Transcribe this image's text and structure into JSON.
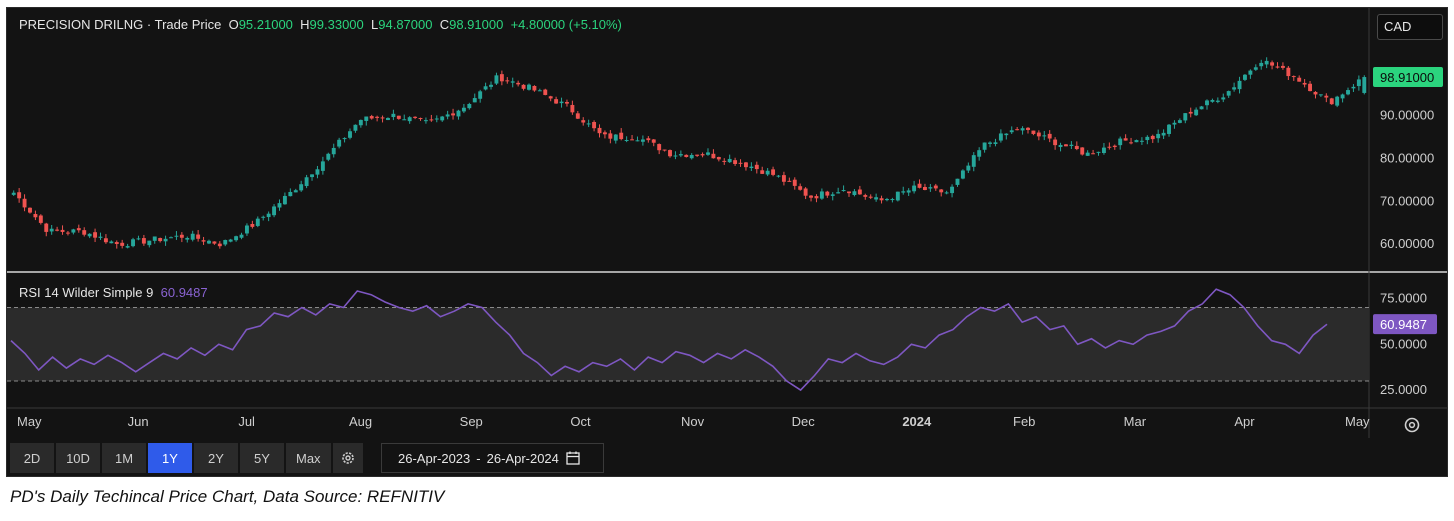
{
  "header": {
    "instrument": "PRECISION DRILNG",
    "separator": "·",
    "series_label": "Trade Price",
    "open_key": "O",
    "open": "95.21000",
    "high_key": "H",
    "high": "99.33000",
    "low_key": "L",
    "low": "94.87000",
    "close_key": "C",
    "close": "98.91000",
    "change": "+4.80000 (+5.10%)"
  },
  "currency": "CAD",
  "rsi_header": {
    "label": "RSI 14 Wilder Simple 9",
    "value": "60.9487"
  },
  "last_price_badge": "98.91000",
  "rsi_badge": "60.9487",
  "toolbar": {
    "buttons": [
      "2D",
      "10D",
      "1M",
      "1Y",
      "2Y",
      "5Y",
      "Max"
    ],
    "active": "1Y",
    "date_from": "26-Apr-2023",
    "date_sep": "-",
    "date_to": "26-Apr-2024"
  },
  "caption": "PD's Daily Techincal Price Chart, Data Source: REFNITIV",
  "colors": {
    "up": "#26a69a",
    "down": "#ef5350",
    "rsi": "#7e57c2",
    "badge_price": "#2bd47e",
    "badge_rsi": "#7e57c2",
    "active_button": "#2f5bea"
  },
  "chart_data": [
    {
      "type": "candlestick",
      "title": "PRECISION DRILNG · Trade Price",
      "price_axis": {
        "ticks": [
          "60.00000",
          "70.00000",
          "80.00000",
          "90.00000"
        ],
        "range": [
          54,
          108
        ]
      },
      "x_axis": {
        "labels": [
          "May",
          "Jun",
          "Jul",
          "Aug",
          "Sep",
          "Oct",
          "Nov",
          "Dec",
          "2024",
          "Feb",
          "Mar",
          "Apr",
          "May"
        ]
      },
      "series": [
        {
          "name": "Trade Price",
          "dates": [
            "2023-04",
            "2023-05-01",
            "2023-05-15",
            "2023-06-01",
            "2023-06-10",
            "2023-06-20",
            "2023-07-01",
            "2023-07-15",
            "2023-07-25",
            "2023-08-01",
            "2023-08-10",
            "2023-08-20",
            "2023-09-01",
            "2023-09-08",
            "2023-09-15",
            "2023-09-22",
            "2023-10-01",
            "2023-10-10",
            "2023-10-20",
            "2023-11-01",
            "2023-11-15",
            "2023-11-25",
            "2023-12-01",
            "2023-12-10",
            "2023-12-20",
            "2024-01-01",
            "2024-01-10",
            "2024-01-20",
            "2024-02-01",
            "2024-02-10",
            "2024-02-20",
            "2024-03-01",
            "2024-03-10",
            "2024-03-20",
            "2024-04-01",
            "2024-04-05",
            "2024-04-10",
            "2024-04-15",
            "2024-04-20",
            "2024-04-26"
          ],
          "close": [
            72,
            63,
            63,
            60,
            61,
            62,
            60,
            65,
            72,
            80,
            89,
            90,
            88,
            92,
            99,
            96,
            92,
            85,
            85,
            81,
            81,
            79,
            76,
            71,
            73,
            70,
            73,
            72,
            83,
            87,
            84,
            81,
            84,
            85,
            91,
            95,
            103,
            99,
            93,
            98.91
          ]
        }
      ],
      "last_close": 98.91
    },
    {
      "type": "line",
      "title": "RSI 14 Wilder Simple 9",
      "y_axis": {
        "ticks": [
          "25.0000",
          "50.0000",
          "75.0000"
        ],
        "range": [
          18,
          85
        ],
        "bands": [
          30,
          70
        ]
      },
      "series": [
        {
          "name": "RSI 14 Wilder Simple 9",
          "values": [
            52,
            45,
            36,
            43,
            37,
            42,
            39,
            44,
            40,
            35,
            40,
            45,
            42,
            48,
            44,
            50,
            47,
            58,
            60,
            67,
            65,
            70,
            66,
            72,
            70,
            79,
            77,
            73,
            70,
            68,
            71,
            65,
            68,
            72,
            70,
            62,
            55,
            45,
            40,
            33,
            38,
            35,
            40,
            38,
            42,
            36,
            43,
            40,
            46,
            44,
            40,
            45,
            42,
            47,
            43,
            38,
            30,
            25,
            33,
            42,
            40,
            45,
            41,
            39,
            43,
            50,
            48,
            55,
            58,
            65,
            70,
            68,
            72,
            62,
            65,
            58,
            60,
            50,
            53,
            48,
            52,
            50,
            55,
            57,
            60,
            68,
            72,
            80,
            77,
            70,
            60,
            52,
            50,
            45,
            55,
            60.95
          ]
        }
      ]
    }
  ]
}
